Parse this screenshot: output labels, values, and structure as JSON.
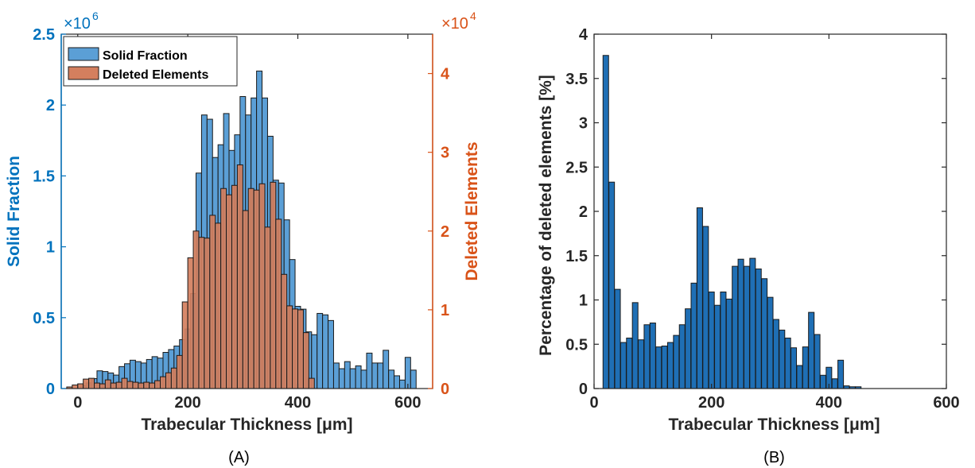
{
  "colors": {
    "solid": "#5b9fd6",
    "deleted": "#d47f5e",
    "panelB": "#1f6fb5",
    "leftAxis": "#0072bd",
    "rightAxis": "#d95319",
    "edge": "#1a1a1a",
    "axis": "#262626"
  },
  "chart_data": [
    {
      "type": "bar",
      "panel_label": "(A)",
      "xlabel": "Trabecular Thickness [μm]",
      "ylabel_left": "Solid Fraction",
      "ylabel_right": "Deleted Elements",
      "xlim": [
        -30,
        645
      ],
      "ylim_left": [
        0,
        2500000
      ],
      "ylim_right": [
        0,
        45000
      ],
      "x_ticks": [
        0,
        200,
        400,
        600
      ],
      "y_left_ticks": [
        0,
        0.5,
        1,
        1.5,
        2,
        2.5
      ],
      "y_right_ticks": [
        0,
        1,
        2,
        3,
        4
      ],
      "left_multiplier": "×10",
      "left_multiplier_exp": "6",
      "right_multiplier": "×10",
      "right_multiplier_exp": "4",
      "legend_position": "top-left",
      "bin_width": 10,
      "x": [
        0,
        10,
        20,
        30,
        40,
        50,
        60,
        70,
        80,
        90,
        100,
        110,
        120,
        130,
        140,
        150,
        160,
        170,
        180,
        190,
        200,
        210,
        220,
        230,
        240,
        250,
        260,
        270,
        280,
        290,
        300,
        310,
        320,
        330,
        340,
        350,
        360,
        370,
        380,
        390,
        400,
        410,
        420,
        430,
        440,
        450,
        460,
        470,
        480,
        490,
        500,
        510,
        520,
        530,
        540,
        550,
        560,
        570,
        580,
        590,
        600,
        610,
        620,
        630
      ],
      "series": [
        {
          "name": "Solid Fraction",
          "axis": "left",
          "values": [
            0,
            20000,
            40000,
            70000,
            125000,
            120000,
            110000,
            95000,
            155000,
            175000,
            200000,
            190000,
            180000,
            205000,
            225000,
            215000,
            255000,
            275000,
            300000,
            345000,
            420000,
            670000,
            1520000,
            1930000,
            1900000,
            1630000,
            1720000,
            1940000,
            1680000,
            1790000,
            2060000,
            1930000,
            2050000,
            2240000,
            2050000,
            1780000,
            1470000,
            1450000,
            1190000,
            910000,
            580000,
            560000,
            400000,
            380000,
            530000,
            520000,
            480000,
            180000,
            140000,
            190000,
            140000,
            160000,
            130000,
            250000,
            180000,
            180000,
            270000,
            130000,
            90000,
            60000,
            220000,
            130000,
            0,
            0
          ],
          "x_offset": 0
        },
        {
          "name": "Deleted Elements",
          "axis": "right",
          "values": [
            200,
            450,
            600,
            1200,
            1300,
            700,
            600,
            1100,
            700,
            800,
            1300,
            900,
            800,
            700,
            800,
            700,
            1000,
            1500,
            2000,
            2600,
            4200,
            11000,
            16600,
            20000,
            19200,
            19100,
            22000,
            21000,
            25400,
            24600,
            25800,
            28400,
            22600,
            25400,
            25200,
            26000,
            20500,
            26200,
            21500,
            14500,
            10500,
            10100,
            10000,
            7100,
            1300,
            0,
            0,
            0,
            0,
            0,
            0,
            0,
            0,
            0,
            0,
            0,
            0,
            0,
            0,
            0,
            0,
            0,
            0,
            0
          ],
          "x_offset": -15
        }
      ]
    },
    {
      "type": "bar",
      "panel_label": "(B)",
      "xlabel": "Trabecular Thickness [μm]",
      "ylabel": "Percentage of deleted elements [%]",
      "xlim": [
        0,
        600
      ],
      "ylim": [
        0,
        4
      ],
      "x_ticks": [
        0,
        200,
        400,
        600
      ],
      "y_ticks": [
        0,
        0.5,
        1,
        1.5,
        2,
        2.5,
        3,
        3.5,
        4
      ],
      "bin_width": 9.5,
      "x": [
        20,
        30,
        40,
        50,
        60,
        70,
        80,
        90,
        100,
        110,
        120,
        130,
        140,
        150,
        160,
        170,
        180,
        190,
        200,
        210,
        220,
        230,
        240,
        250,
        260,
        270,
        280,
        290,
        300,
        310,
        320,
        330,
        340,
        350,
        360,
        370,
        380,
        390,
        400,
        410,
        420,
        430,
        440,
        450,
        460,
        470
      ],
      "values": [
        3.76,
        2.33,
        1.12,
        0.52,
        0.57,
        0.97,
        0.55,
        0.72,
        0.74,
        0.47,
        0.48,
        0.52,
        0.6,
        0.72,
        0.9,
        1.19,
        2.04,
        1.83,
        1.09,
        0.94,
        1.09,
        1.01,
        1.38,
        1.46,
        1.38,
        1.47,
        1.35,
        1.24,
        1.03,
        0.78,
        0.66,
        0.57,
        0.46,
        0.26,
        0.47,
        0.86,
        0.61,
        0.15,
        0.24,
        0.11,
        0.32,
        0.03,
        0.02,
        0.02,
        0,
        0
      ]
    }
  ]
}
